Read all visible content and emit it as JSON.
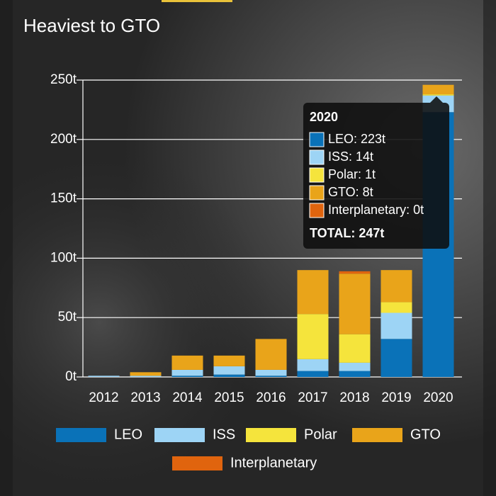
{
  "chart_data": {
    "type": "stacked-bar",
    "title": "Heaviest to GTO",
    "categories": [
      "2012",
      "2013",
      "2014",
      "2015",
      "2016",
      "2017",
      "2018",
      "2019",
      "2020"
    ],
    "series": [
      {
        "name": "LEO",
        "color": "#0a72b8",
        "values": [
          0,
          0,
          1,
          2,
          1,
          5,
          5,
          32,
          223
        ]
      },
      {
        "name": "ISS",
        "color": "#9dd4f5",
        "values": [
          1,
          1,
          5,
          7,
          5,
          10,
          7,
          22,
          14
        ]
      },
      {
        "name": "Polar",
        "color": "#f5e43c",
        "values": [
          0,
          0,
          0,
          0,
          0,
          38,
          24,
          9,
          1
        ]
      },
      {
        "name": "GTO",
        "color": "#e9a41a",
        "values": [
          0,
          3,
          12,
          9,
          26,
          37,
          51,
          27,
          8
        ]
      },
      {
        "name": "Interplanetary",
        "color": "#e0640e",
        "values": [
          0,
          0,
          0,
          0,
          0,
          0,
          2,
          0,
          0
        ]
      }
    ],
    "ylim": [
      0,
      250
    ],
    "yticks": [
      {
        "value": 0,
        "label": "0t"
      },
      {
        "value": 50,
        "label": "50t"
      },
      {
        "value": 100,
        "label": "100t"
      },
      {
        "value": 150,
        "label": "150t"
      },
      {
        "value": 200,
        "label": "200t"
      },
      {
        "value": 250,
        "label": "250t"
      }
    ],
    "grid": true,
    "legend": "bottom",
    "tooltip": {
      "title": "2020",
      "items": [
        "LEO: 223t",
        "ISS: 14t",
        "Polar: 1t",
        "GTO: 8t",
        "Interplanetary: 0t"
      ],
      "total": "TOTAL: 247t"
    }
  }
}
